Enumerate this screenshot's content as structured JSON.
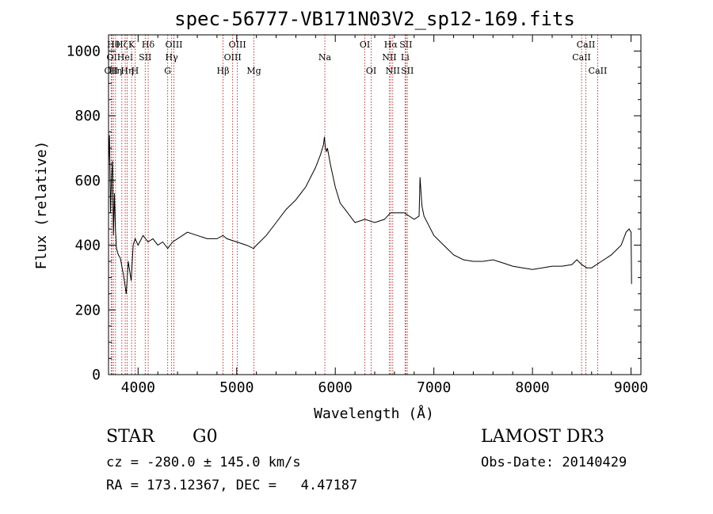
{
  "chart_data": {
    "type": "line",
    "title": "spec-56777-VB171N03V2_sp12-169.fits",
    "xlabel": "Wavelength (Å)",
    "ylabel": "Flux (relative)",
    "xlim": [
      3700,
      9100
    ],
    "ylim": [
      0,
      1050
    ],
    "x_ticks": [
      4000,
      5000,
      6000,
      7000,
      8000,
      9000
    ],
    "y_ticks": [
      0,
      200,
      400,
      600,
      800,
      1000
    ],
    "grid": false,
    "line_color": "#000000",
    "marker_color": "#b22222",
    "spectrum": {
      "x": [
        3700,
        3710,
        3720,
        3730,
        3740,
        3750,
        3760,
        3770,
        3780,
        3800,
        3820,
        3850,
        3880,
        3900,
        3930,
        3950,
        3970,
        4000,
        4050,
        4100,
        4150,
        4200,
        4250,
        4300,
        4350,
        4400,
        4500,
        4600,
        4700,
        4800,
        4860,
        4900,
        5000,
        5100,
        5170,
        5200,
        5300,
        5400,
        5500,
        5600,
        5700,
        5800,
        5850,
        5880,
        5890,
        5900,
        5910,
        5920,
        5950,
        6000,
        6050,
        6100,
        6200,
        6300,
        6400,
        6500,
        6560,
        6600,
        6700,
        6800,
        6850,
        6860,
        6870,
        6880,
        6900,
        7000,
        7100,
        7200,
        7300,
        7400,
        7500,
        7600,
        7700,
        7800,
        7900,
        8000,
        8100,
        8200,
        8300,
        8400,
        8450,
        8500,
        8550,
        8600,
        8700,
        8800,
        8900,
        8950,
        8980,
        9000,
        9005
      ],
      "y": [
        650,
        740,
        500,
        600,
        660,
        430,
        560,
        450,
        390,
        370,
        360,
        310,
        250,
        350,
        290,
        400,
        420,
        400,
        430,
        410,
        420,
        400,
        410,
        390,
        410,
        420,
        440,
        430,
        420,
        420,
        430,
        420,
        410,
        400,
        390,
        400,
        430,
        470,
        510,
        540,
        580,
        640,
        680,
        710,
        735,
        700,
        690,
        700,
        650,
        580,
        530,
        510,
        470,
        480,
        470,
        480,
        500,
        500,
        500,
        480,
        490,
        610,
        560,
        520,
        490,
        430,
        400,
        370,
        355,
        350,
        350,
        355,
        345,
        335,
        330,
        325,
        330,
        335,
        335,
        340,
        355,
        340,
        330,
        330,
        350,
        370,
        400,
        440,
        450,
        440,
        280
      ]
    },
    "line_markers": [
      {
        "x": 3727,
        "label": "OII",
        "row": 3
      },
      {
        "x": 3734,
        "label": "OI",
        "row": 2
      },
      {
        "x": 3750,
        "label": "Hθ",
        "row": 1
      },
      {
        "x": 3771,
        "label": "Hη",
        "row": 3
      },
      {
        "x": 3835,
        "label": "Hζ",
        "row": 1
      },
      {
        "x": 3869,
        "label": "HeI",
        "row": 2
      },
      {
        "x": 3889,
        "label": "Hη",
        "row": 3
      },
      {
        "x": 3934,
        "label": "K",
        "row": 1
      },
      {
        "x": 3969,
        "label": "H",
        "row": 3
      },
      {
        "x": 4072,
        "label": "SII",
        "row": 2
      },
      {
        "x": 4102,
        "label": "Hδ",
        "row": 1
      },
      {
        "x": 4300,
        "label": "G",
        "row": 3
      },
      {
        "x": 4340,
        "label": "Hγ",
        "row": 2
      },
      {
        "x": 4363,
        "label": "OIII",
        "row": 1
      },
      {
        "x": 4861,
        "label": "Hβ",
        "row": 3
      },
      {
        "x": 4959,
        "label": "OIII",
        "row": 2
      },
      {
        "x": 5007,
        "label": "OIII",
        "row": 1
      },
      {
        "x": 5175,
        "label": "Mg",
        "row": 3
      },
      {
        "x": 5894,
        "label": "Na",
        "row": 2
      },
      {
        "x": 6300,
        "label": "OI",
        "row": 1
      },
      {
        "x": 6364,
        "label": "OI",
        "row": 3
      },
      {
        "x": 6548,
        "label": "NII",
        "row": 2
      },
      {
        "x": 6563,
        "label": "Hα",
        "row": 1
      },
      {
        "x": 6583,
        "label": "NII",
        "row": 3
      },
      {
        "x": 6708,
        "label": "Li",
        "row": 2
      },
      {
        "x": 6716,
        "label": "SII",
        "row": 1
      },
      {
        "x": 6731,
        "label": "SII",
        "row": 3
      },
      {
        "x": 8498,
        "label": "CaII",
        "row": 2
      },
      {
        "x": 8542,
        "label": "CaII",
        "row": 1
      },
      {
        "x": 8662,
        "label": "CaII",
        "row": 3
      }
    ]
  },
  "info": {
    "class": "STAR",
    "subclass": "G0",
    "cz": "cz = -280.0 ± 145.0 km/s",
    "radec": "RA = 173.12367, DEC =   4.47187",
    "survey": "LAMOST DR3",
    "obsdate": "Obs-Date: 20140429"
  }
}
